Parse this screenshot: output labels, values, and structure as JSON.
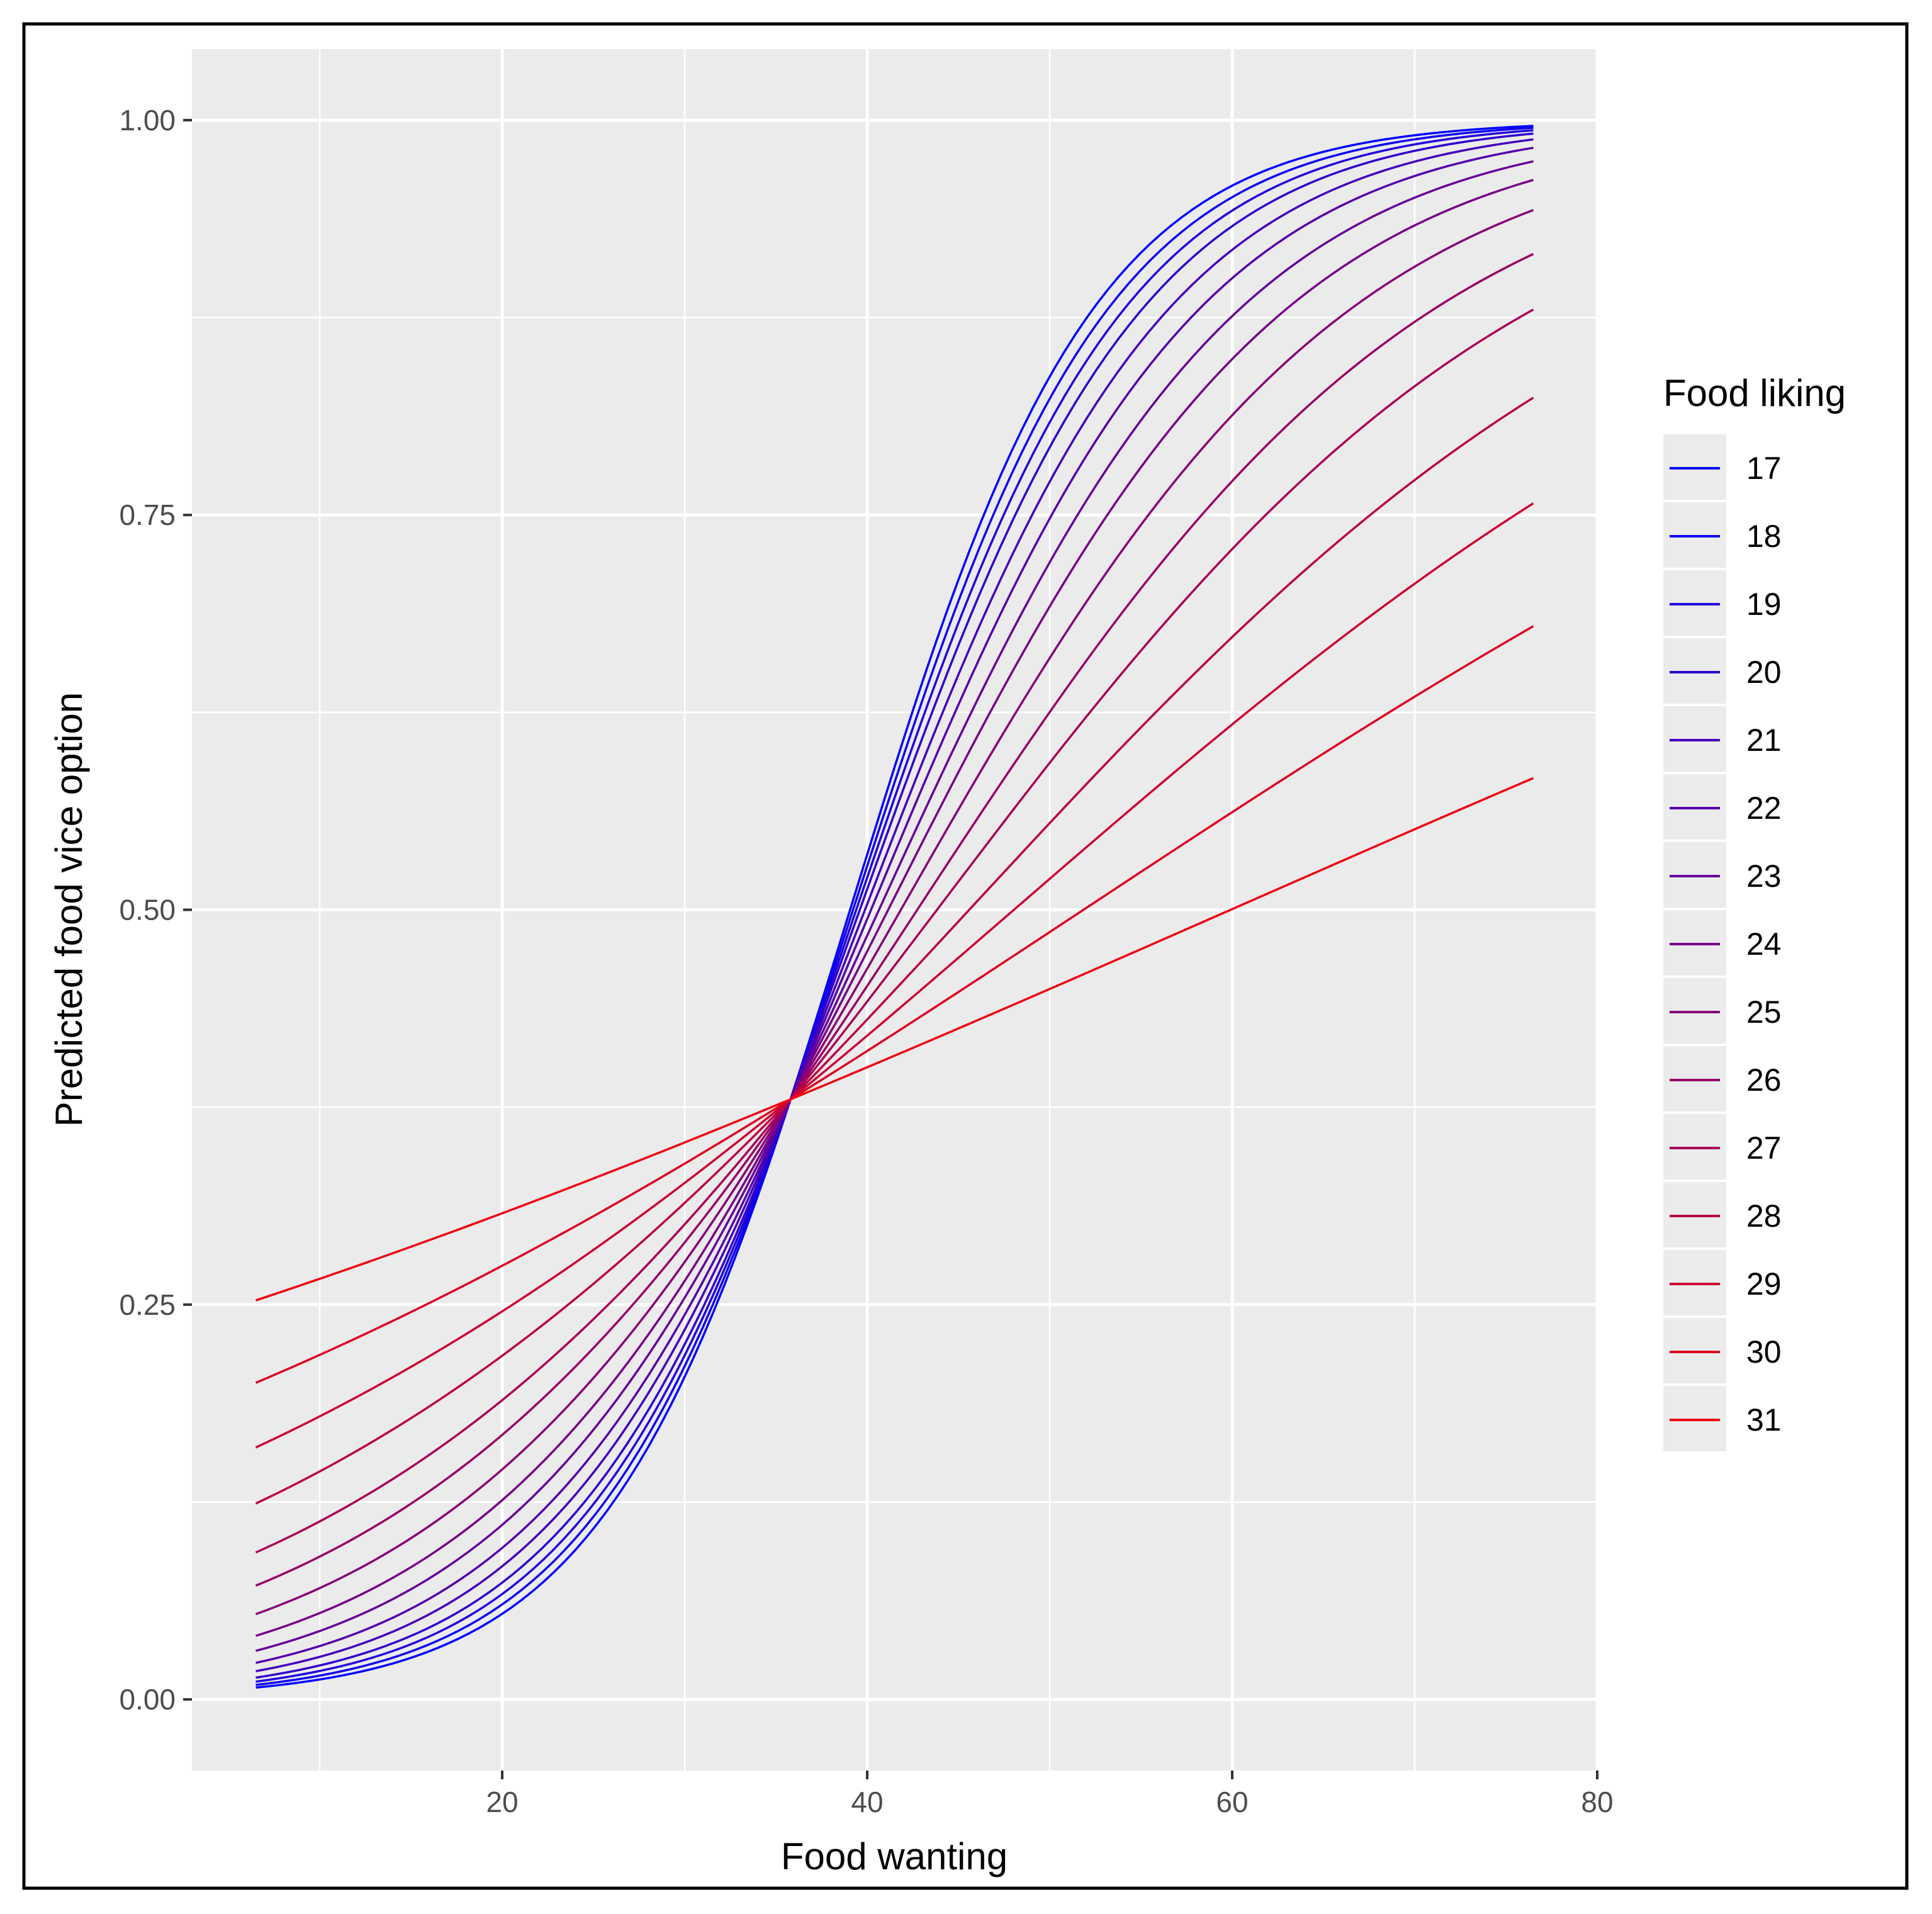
{
  "chart_data": {
    "type": "line",
    "title": "",
    "xlabel": "Food wanting",
    "ylabel": "Predicted food vice option",
    "xlim": [
      3,
      80
    ],
    "ylim": [
      -0.045,
      1.045
    ],
    "x_ticks": [
      20,
      40,
      60,
      80
    ],
    "x_tick_labels": [
      "20",
      "40",
      "60",
      "80"
    ],
    "y_ticks": [
      0,
      0.25,
      0.5,
      0.75,
      1
    ],
    "y_tick_labels": [
      "0.00",
      "0.25",
      "0.50",
      "0.75",
      "1.00"
    ],
    "x_range": [
      6.5,
      76.5
    ],
    "crossing_point": {
      "x": 35.8,
      "y": 0.38
    },
    "legend": {
      "title": "Food liking",
      "position": "right",
      "labels": [
        "17",
        "18",
        "19",
        "20",
        "21",
        "22",
        "23",
        "24",
        "25",
        "26",
        "27",
        "28",
        "29",
        "30",
        "31"
      ]
    },
    "series": [
      {
        "name": "17",
        "color": "#0000ff",
        "slope": 0.15,
        "x": [
          6.5,
          76.5
        ]
      },
      {
        "name": "18",
        "color": "#1000ee",
        "slope": 0.143,
        "x": [
          6.5,
          76.5
        ]
      },
      {
        "name": "19",
        "color": "#2000dd",
        "slope": 0.136,
        "x": [
          6.5,
          76.5
        ]
      },
      {
        "name": "20",
        "color": "#3000cc",
        "slope": 0.129,
        "x": [
          6.5,
          76.5
        ]
      },
      {
        "name": "21",
        "color": "#4400bb",
        "slope": 0.12,
        "x": [
          6.5,
          76.5
        ]
      },
      {
        "name": "22",
        "color": "#5500aa",
        "slope": 0.111,
        "x": [
          6.5,
          76.5
        ]
      },
      {
        "name": "23",
        "color": "#660099",
        "slope": 0.101,
        "x": [
          6.5,
          76.5
        ]
      },
      {
        "name": "24",
        "color": "#770088",
        "slope": 0.0915,
        "x": [
          6.5,
          76.5
        ]
      },
      {
        "name": "25",
        "color": "#880077",
        "slope": 0.081,
        "x": [
          6.5,
          76.5
        ]
      },
      {
        "name": "26",
        "color": "#990066",
        "slope": 0.0705,
        "x": [
          6.5,
          76.5
        ]
      },
      {
        "name": "27",
        "color": "#aa0055",
        "slope": 0.061,
        "x": [
          6.5,
          76.5
        ]
      },
      {
        "name": "28",
        "color": "#bb0044",
        "slope": 0.05,
        "x": [
          6.5,
          76.5
        ]
      },
      {
        "name": "29",
        "color": "#cc0033",
        "slope": 0.04,
        "x": [
          6.5,
          76.5
        ]
      },
      {
        "name": "30",
        "color": "#dd0022",
        "slope": 0.0305,
        "x": [
          6.5,
          76.5
        ]
      },
      {
        "name": "31",
        "color": "#ee0011",
        "slope": 0.0203,
        "x": [
          6.5,
          76.5
        ]
      }
    ],
    "colors": {
      "panel_background": "#ebebeb",
      "grid": "#ffffff",
      "border": "#000000"
    }
  }
}
